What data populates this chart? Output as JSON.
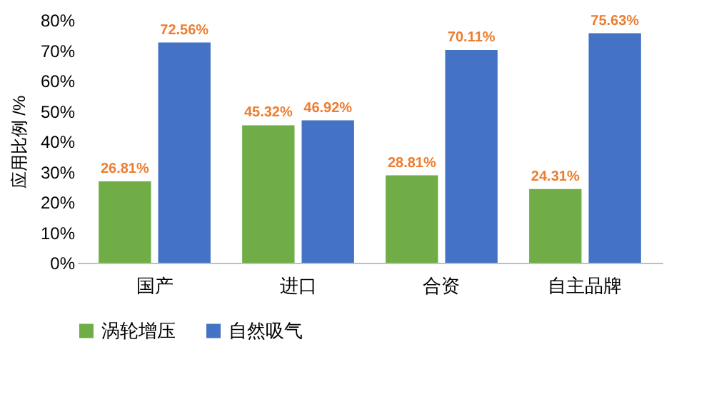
{
  "chart_data": {
    "type": "bar",
    "ylabel": "应用比例 /%",
    "categories": [
      "国产",
      "进口",
      "合资",
      "自主品牌"
    ],
    "series": [
      {
        "name": "涡轮增压",
        "color": "#70ad47",
        "values": [
          26.81,
          45.32,
          28.81,
          24.31
        ],
        "value_labels": [
          "26.81%",
          "45.32%",
          "28.81%",
          "24.31%"
        ]
      },
      {
        "name": "自然吸气",
        "color": "#4472c4",
        "values": [
          72.56,
          46.92,
          70.11,
          75.63
        ],
        "value_labels": [
          "72.56%",
          "46.92%",
          "70.11%",
          "75.63%"
        ]
      }
    ],
    "ylim": [
      0,
      80
    ],
    "yticks": [
      {
        "value": 0,
        "label": "0%"
      },
      {
        "value": 10,
        "label": "10%"
      },
      {
        "value": 20,
        "label": "20%"
      },
      {
        "value": 30,
        "label": "30%"
      },
      {
        "value": 40,
        "label": "40%"
      },
      {
        "value": 50,
        "label": "50%"
      },
      {
        "value": 60,
        "label": "60%"
      },
      {
        "value": 70,
        "label": "70%"
      },
      {
        "value": 80,
        "label": "80%"
      }
    ],
    "legend": "bottom"
  }
}
